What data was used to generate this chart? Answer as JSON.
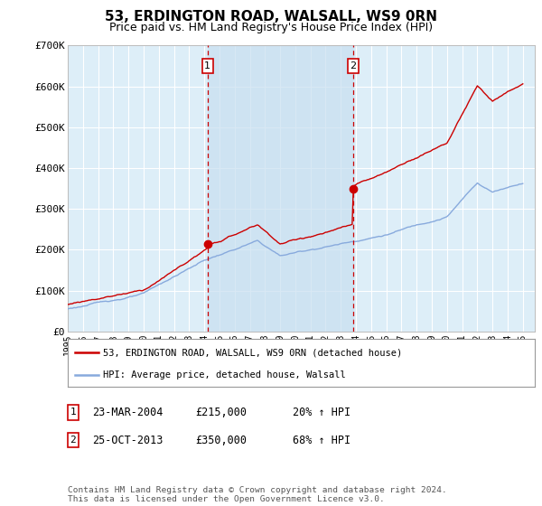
{
  "title": "53, ERDINGTON ROAD, WALSALL, WS9 0RN",
  "subtitle": "Price paid vs. HM Land Registry's House Price Index (HPI)",
  "title_fontsize": 11,
  "subtitle_fontsize": 9,
  "ylim": [
    0,
    700000
  ],
  "yticks": [
    0,
    100000,
    200000,
    300000,
    400000,
    500000,
    600000,
    700000
  ],
  "ytick_labels": [
    "£0",
    "£100K",
    "£200K",
    "£300K",
    "£400K",
    "£500K",
    "£600K",
    "£700K"
  ],
  "xlim_start": 1995.0,
  "xlim_end": 2025.8,
  "xtick_years": [
    1995,
    1996,
    1997,
    1998,
    1999,
    2000,
    2001,
    2002,
    2003,
    2004,
    2005,
    2006,
    2007,
    2008,
    2009,
    2010,
    2011,
    2012,
    2013,
    2014,
    2015,
    2016,
    2017,
    2018,
    2019,
    2020,
    2021,
    2022,
    2023,
    2024,
    2025
  ],
  "plot_bg_color": "#ddeef8",
  "grid_color": "#ffffff",
  "sale1_x": 2004.22,
  "sale1_y": 215000,
  "sale2_x": 2013.81,
  "sale2_y": 350000,
  "legend_line1": "53, ERDINGTON ROAD, WALSALL, WS9 0RN (detached house)",
  "legend_line2": "HPI: Average price, detached house, Walsall",
  "red_color": "#cc0000",
  "blue_color": "#88aadd",
  "marker_box_color": "#cc0000",
  "shade_color": "#c8dff0",
  "footer_text": "Contains HM Land Registry data © Crown copyright and database right 2024.\nThis data is licensed under the Open Government Licence v3.0.",
  "table_entries": [
    {
      "num": "1",
      "date": "23-MAR-2004",
      "price": "£215,000",
      "hpi": "20% ↑ HPI"
    },
    {
      "num": "2",
      "date": "25-OCT-2013",
      "price": "£350,000",
      "hpi": "68% ↑ HPI"
    }
  ]
}
